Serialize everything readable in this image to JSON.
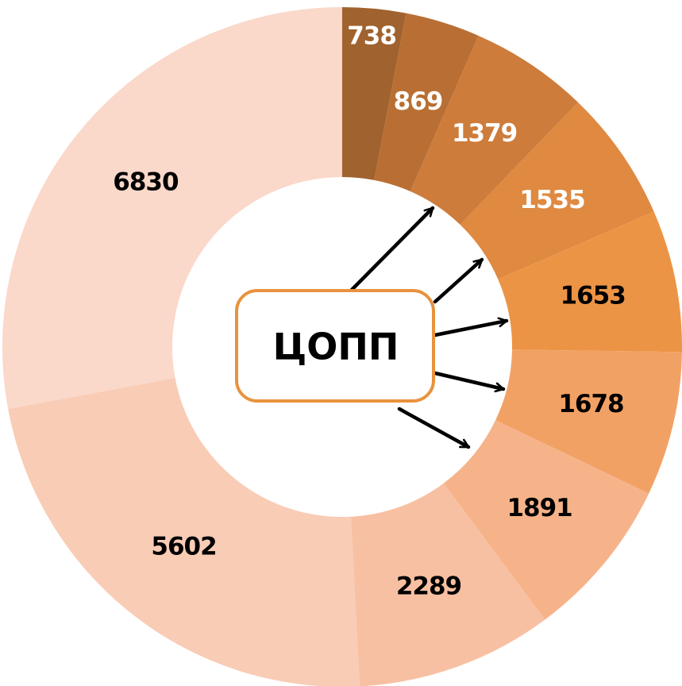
{
  "chart_data": {
    "type": "donut",
    "center_label": "ЦОПП",
    "values": [
      738,
      869,
      1379,
      1535,
      1653,
      1678,
      1891,
      2289,
      5602,
      6830
    ],
    "colors": [
      "#a0622e",
      "#b96f33",
      "#cd7c3b",
      "#df8941",
      "#ec9445",
      "#f2a165",
      "#f6b38a",
      "#f8c0a2",
      "#f9ccb6",
      "#fad8ca"
    ],
    "label_colors": [
      "#ffffff",
      "#ffffff",
      "#ffffff",
      "#ffffff",
      "#000000",
      "#000000",
      "#000000",
      "#000000",
      "#000000",
      "#000000"
    ]
  }
}
